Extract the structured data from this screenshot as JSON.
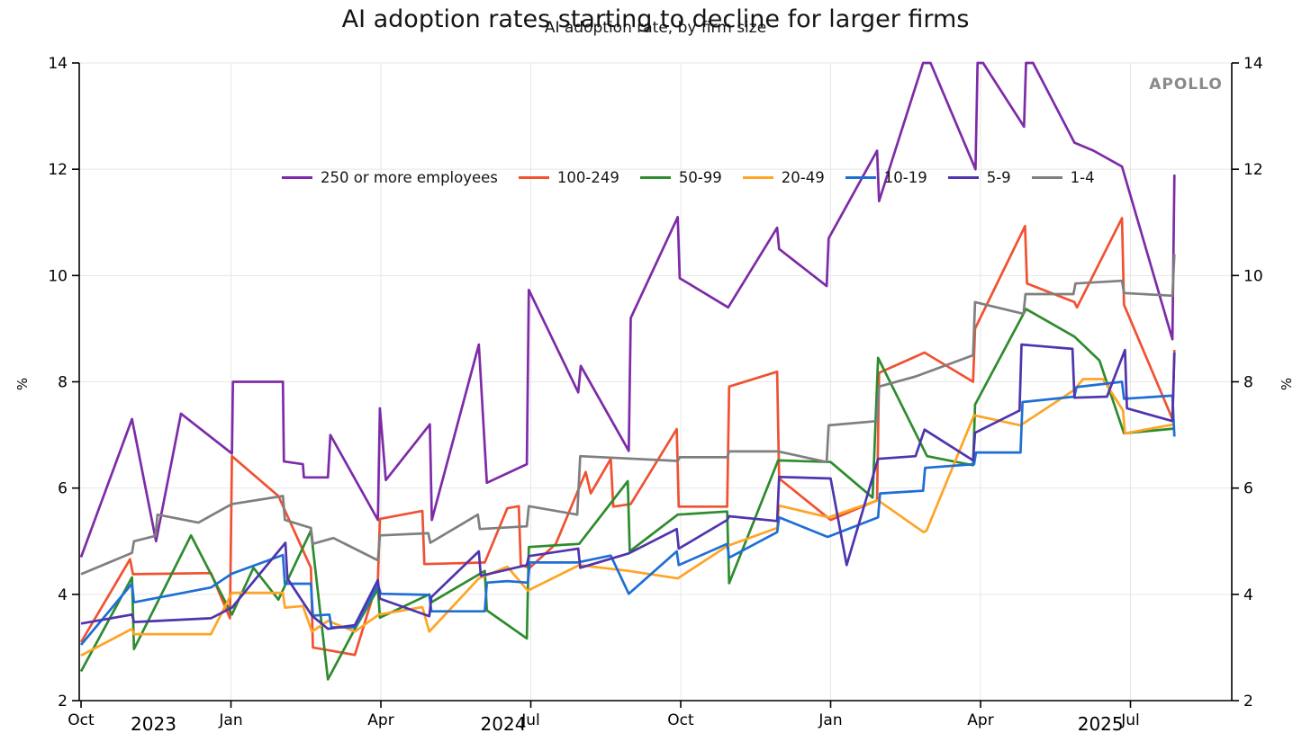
{
  "header": {
    "headline": "AI adoption rates starting to decline for larger firms",
    "subtitle": "AI adoption rate, by firm size",
    "watermark": "APOLLO"
  },
  "chart_data": {
    "type": "line",
    "title": "AI adoption rate, by firm size",
    "xlabel": "",
    "ylabel": "%",
    "ylim": [
      2,
      14
    ],
    "yticks": [
      2,
      4,
      6,
      8,
      10,
      12,
      14
    ],
    "grid": true,
    "legend_position": "top-center-inside",
    "x_unit": "months since Oct 2023 (biweekly survey periods)",
    "x_axis": {
      "month_ticks": [
        {
          "m": 0,
          "label": "Oct"
        },
        {
          "m": 3,
          "label": "Jan"
        },
        {
          "m": 6,
          "label": "Apr"
        },
        {
          "m": 9,
          "label": "Jul"
        },
        {
          "m": 12,
          "label": "Oct"
        },
        {
          "m": 15,
          "label": "Jan"
        },
        {
          "m": 18,
          "label": "Apr"
        },
        {
          "m": 21,
          "label": "Jul"
        }
      ],
      "year_ticks": [
        {
          "m": 1.45,
          "label": "2023"
        },
        {
          "m": 8.45,
          "label": "2024"
        },
        {
          "m": 20.4,
          "label": "2025"
        }
      ]
    },
    "series": [
      {
        "name": "250 or more employees",
        "color": "#7D2BA6",
        "points": [
          [
            0,
            4.7
          ],
          [
            1.02,
            7.3
          ],
          [
            1.5,
            5.0
          ],
          [
            2.0,
            7.4
          ],
          [
            3.02,
            6.65
          ],
          [
            3.04,
            8.0
          ],
          [
            4.04,
            8.0
          ],
          [
            4.06,
            6.5
          ],
          [
            4.44,
            6.45
          ],
          [
            4.46,
            6.2
          ],
          [
            4.94,
            6.2
          ],
          [
            4.99,
            7.0
          ],
          [
            5.94,
            5.4
          ],
          [
            5.98,
            7.5
          ],
          [
            6.1,
            6.15
          ],
          [
            6.98,
            7.2
          ],
          [
            7.02,
            5.4
          ],
          [
            7.96,
            8.7
          ],
          [
            8.12,
            6.1
          ],
          [
            8.92,
            6.45
          ],
          [
            8.96,
            9.73
          ],
          [
            9.95,
            7.8
          ],
          [
            10.0,
            8.3
          ],
          [
            10.96,
            6.7
          ],
          [
            11.0,
            9.2
          ],
          [
            11.94,
            11.1
          ],
          [
            11.98,
            9.95
          ],
          [
            12.95,
            9.4
          ],
          [
            13.93,
            10.9
          ],
          [
            13.97,
            10.5
          ],
          [
            14.92,
            9.8
          ],
          [
            14.96,
            10.7
          ],
          [
            15.93,
            12.35
          ],
          [
            15.97,
            11.4
          ],
          [
            16.85,
            14.0
          ],
          [
            17.0,
            14.0
          ],
          [
            17.9,
            12.0
          ],
          [
            17.94,
            14.0
          ],
          [
            18.05,
            14.0
          ],
          [
            18.87,
            12.8
          ],
          [
            18.91,
            14.0
          ],
          [
            19.05,
            14.0
          ],
          [
            19.88,
            12.5
          ],
          [
            20.26,
            12.35
          ],
          [
            20.83,
            12.05
          ],
          [
            21.84,
            8.8
          ],
          [
            21.88,
            11.9
          ]
        ]
      },
      {
        "name": "100-249",
        "color": "#F05131",
        "points": [
          [
            0,
            3.1
          ],
          [
            0.98,
            4.66
          ],
          [
            1.04,
            4.38
          ],
          [
            2.6,
            4.4
          ],
          [
            2.98,
            3.55
          ],
          [
            3.02,
            6.6
          ],
          [
            3.95,
            5.85
          ],
          [
            4.6,
            4.5
          ],
          [
            4.64,
            3.0
          ],
          [
            5.48,
            2.86
          ],
          [
            5.94,
            4.27
          ],
          [
            5.98,
            5.42
          ],
          [
            6.83,
            5.57
          ],
          [
            6.87,
            4.57
          ],
          [
            8.08,
            4.6
          ],
          [
            8.53,
            5.62
          ],
          [
            8.76,
            5.66
          ],
          [
            8.8,
            4.55
          ],
          [
            8.98,
            4.5
          ],
          [
            9.5,
            4.95
          ],
          [
            10.1,
            6.3
          ],
          [
            10.2,
            5.9
          ],
          [
            10.6,
            6.55
          ],
          [
            10.65,
            5.65
          ],
          [
            11.0,
            5.7
          ],
          [
            11.92,
            7.11
          ],
          [
            11.96,
            5.65
          ],
          [
            12.93,
            5.65
          ],
          [
            12.97,
            7.91
          ],
          [
            13.93,
            8.19
          ],
          [
            13.97,
            6.18
          ],
          [
            15.0,
            5.4
          ],
          [
            15.93,
            5.77
          ],
          [
            15.97,
            8.17
          ],
          [
            16.88,
            8.55
          ],
          [
            17.85,
            8.0
          ],
          [
            17.89,
            9.0
          ],
          [
            18.89,
            10.93
          ],
          [
            18.93,
            9.85
          ],
          [
            19.88,
            9.5
          ],
          [
            19.93,
            9.4
          ],
          [
            20.83,
            11.08
          ],
          [
            20.87,
            9.45
          ],
          [
            21.84,
            7.3
          ],
          [
            21.88,
            8.6
          ]
        ]
      },
      {
        "name": "50-99",
        "color": "#2E8B2E",
        "points": [
          [
            0,
            2.55
          ],
          [
            1.02,
            4.32
          ],
          [
            1.06,
            2.97
          ],
          [
            2.2,
            5.11
          ],
          [
            3.02,
            3.62
          ],
          [
            3.45,
            4.5
          ],
          [
            3.95,
            3.9
          ],
          [
            4.6,
            5.2
          ],
          [
            4.94,
            2.4
          ],
          [
            5.48,
            3.35
          ],
          [
            5.94,
            4.1
          ],
          [
            5.98,
            3.56
          ],
          [
            6.97,
            4.0
          ],
          [
            7.01,
            3.85
          ],
          [
            8.08,
            4.44
          ],
          [
            8.12,
            3.7
          ],
          [
            8.92,
            3.17
          ],
          [
            8.96,
            4.89
          ],
          [
            9.97,
            4.95
          ],
          [
            10.94,
            6.13
          ],
          [
            10.98,
            4.81
          ],
          [
            11.94,
            5.5
          ],
          [
            12.93,
            5.56
          ],
          [
            12.97,
            4.21
          ],
          [
            13.95,
            6.52
          ],
          [
            15.0,
            6.49
          ],
          [
            15.84,
            5.82
          ],
          [
            15.95,
            8.45
          ],
          [
            16.93,
            6.6
          ],
          [
            17.85,
            6.43
          ],
          [
            17.89,
            7.57
          ],
          [
            18.91,
            9.37
          ],
          [
            19.88,
            8.85
          ],
          [
            20.38,
            8.4
          ],
          [
            20.87,
            7.03
          ],
          [
            21.88,
            7.12
          ]
        ]
      },
      {
        "name": "20-49",
        "color": "#FFA424",
        "points": [
          [
            0,
            2.85
          ],
          [
            1.02,
            3.35
          ],
          [
            1.06,
            3.25
          ],
          [
            2.6,
            3.25
          ],
          [
            3.02,
            4.03
          ],
          [
            4.04,
            4.03
          ],
          [
            4.08,
            3.75
          ],
          [
            4.44,
            3.78
          ],
          [
            4.62,
            3.3
          ],
          [
            4.94,
            3.5
          ],
          [
            5.48,
            3.3
          ],
          [
            5.96,
            3.62
          ],
          [
            6.83,
            3.76
          ],
          [
            6.97,
            3.3
          ],
          [
            7.96,
            4.3
          ],
          [
            8.53,
            4.52
          ],
          [
            8.94,
            4.07
          ],
          [
            9.97,
            4.55
          ],
          [
            10.96,
            4.44
          ],
          [
            11.94,
            4.3
          ],
          [
            12.93,
            4.91
          ],
          [
            13.93,
            5.25
          ],
          [
            13.97,
            5.67
          ],
          [
            14.96,
            5.45
          ],
          [
            15.95,
            5.77
          ],
          [
            16.86,
            5.17
          ],
          [
            16.92,
            5.2
          ],
          [
            17.87,
            7.37
          ],
          [
            18.8,
            7.18
          ],
          [
            19.88,
            7.85
          ],
          [
            20.05,
            8.05
          ],
          [
            20.45,
            8.05
          ],
          [
            20.85,
            7.46
          ],
          [
            20.89,
            7.03
          ],
          [
            21.88,
            7.2
          ]
        ]
      },
      {
        "name": "10-19",
        "color": "#1E6FD5",
        "points": [
          [
            0,
            3.05
          ],
          [
            1.02,
            4.2
          ],
          [
            1.06,
            3.85
          ],
          [
            2.6,
            4.13
          ],
          [
            3.02,
            4.39
          ],
          [
            4.04,
            4.74
          ],
          [
            4.08,
            4.2
          ],
          [
            4.6,
            4.2
          ],
          [
            4.64,
            3.6
          ],
          [
            4.97,
            3.62
          ],
          [
            5.01,
            3.38
          ],
          [
            5.48,
            3.38
          ],
          [
            5.94,
            4.18
          ],
          [
            6.0,
            4.01
          ],
          [
            6.97,
            3.99
          ],
          [
            7.01,
            3.68
          ],
          [
            8.08,
            3.68
          ],
          [
            8.12,
            4.22
          ],
          [
            8.53,
            4.25
          ],
          [
            8.94,
            4.22
          ],
          [
            8.98,
            4.6
          ],
          [
            9.93,
            4.6
          ],
          [
            10.6,
            4.73
          ],
          [
            10.96,
            4.01
          ],
          [
            11.92,
            4.81
          ],
          [
            11.96,
            4.55
          ],
          [
            12.93,
            4.95
          ],
          [
            12.97,
            4.69
          ],
          [
            13.93,
            5.17
          ],
          [
            13.97,
            5.45
          ],
          [
            14.94,
            5.08
          ],
          [
            15.95,
            5.45
          ],
          [
            15.99,
            5.9
          ],
          [
            16.85,
            5.95
          ],
          [
            16.89,
            6.38
          ],
          [
            17.87,
            6.45
          ],
          [
            17.91,
            6.67
          ],
          [
            18.8,
            6.67
          ],
          [
            18.84,
            7.62
          ],
          [
            19.88,
            7.72
          ],
          [
            19.92,
            7.9
          ],
          [
            20.83,
            8.0
          ],
          [
            20.87,
            7.68
          ],
          [
            21.84,
            7.74
          ],
          [
            21.88,
            6.97
          ]
        ]
      },
      {
        "name": "5-9",
        "color": "#4F34AE",
        "points": [
          [
            0,
            3.45
          ],
          [
            1.02,
            3.62
          ],
          [
            1.06,
            3.48
          ],
          [
            2.6,
            3.55
          ],
          [
            3.02,
            3.75
          ],
          [
            4.09,
            4.97
          ],
          [
            4.13,
            4.3
          ],
          [
            4.62,
            3.6
          ],
          [
            4.94,
            3.35
          ],
          [
            5.48,
            3.42
          ],
          [
            5.94,
            4.27
          ],
          [
            5.98,
            3.92
          ],
          [
            6.97,
            3.59
          ],
          [
            7.01,
            3.95
          ],
          [
            7.96,
            4.81
          ],
          [
            8.0,
            4.35
          ],
          [
            8.92,
            4.55
          ],
          [
            8.96,
            4.72
          ],
          [
            9.95,
            4.86
          ],
          [
            9.99,
            4.5
          ],
          [
            10.96,
            4.77
          ],
          [
            11.92,
            5.23
          ],
          [
            11.96,
            4.86
          ],
          [
            12.93,
            5.4
          ],
          [
            12.97,
            5.47
          ],
          [
            13.93,
            5.38
          ],
          [
            13.97,
            6.21
          ],
          [
            15.0,
            6.18
          ],
          [
            15.32,
            4.55
          ],
          [
            15.95,
            6.55
          ],
          [
            16.7,
            6.6
          ],
          [
            16.88,
            7.1
          ],
          [
            17.85,
            6.52
          ],
          [
            17.89,
            7.04
          ],
          [
            18.78,
            7.46
          ],
          [
            18.82,
            8.7
          ],
          [
            19.84,
            8.62
          ],
          [
            19.88,
            7.7
          ],
          [
            20.53,
            7.72
          ],
          [
            20.89,
            8.6
          ],
          [
            20.93,
            7.5
          ],
          [
            21.84,
            7.26
          ],
          [
            21.88,
            8.55
          ]
        ]
      },
      {
        "name": "1-4",
        "color": "#7F7F7F",
        "points": [
          [
            0,
            4.38
          ],
          [
            1.02,
            4.78
          ],
          [
            1.06,
            5.0
          ],
          [
            1.49,
            5.1
          ],
          [
            1.53,
            5.5
          ],
          [
            2.35,
            5.35
          ],
          [
            3.02,
            5.7
          ],
          [
            4.04,
            5.85
          ],
          [
            4.08,
            5.4
          ],
          [
            4.6,
            5.25
          ],
          [
            4.64,
            4.95
          ],
          [
            5.05,
            5.06
          ],
          [
            5.94,
            4.64
          ],
          [
            5.98,
            5.11
          ],
          [
            6.95,
            5.15
          ],
          [
            6.99,
            4.97
          ],
          [
            7.94,
            5.5
          ],
          [
            7.98,
            5.23
          ],
          [
            8.92,
            5.28
          ],
          [
            8.96,
            5.66
          ],
          [
            9.93,
            5.5
          ],
          [
            9.99,
            6.6
          ],
          [
            11.94,
            6.51
          ],
          [
            11.98,
            6.58
          ],
          [
            12.93,
            6.58
          ],
          [
            12.97,
            6.69
          ],
          [
            13.95,
            6.69
          ],
          [
            14.92,
            6.49
          ],
          [
            14.96,
            7.18
          ],
          [
            15.93,
            7.26
          ],
          [
            15.97,
            7.91
          ],
          [
            16.7,
            8.1
          ],
          [
            17.85,
            8.5
          ],
          [
            17.89,
            9.5
          ],
          [
            18.86,
            9.28
          ],
          [
            18.9,
            9.65
          ],
          [
            19.86,
            9.65
          ],
          [
            19.9,
            9.85
          ],
          [
            20.83,
            9.9
          ],
          [
            20.87,
            9.67
          ],
          [
            21.84,
            9.62
          ],
          [
            21.88,
            10.4
          ]
        ]
      }
    ]
  }
}
